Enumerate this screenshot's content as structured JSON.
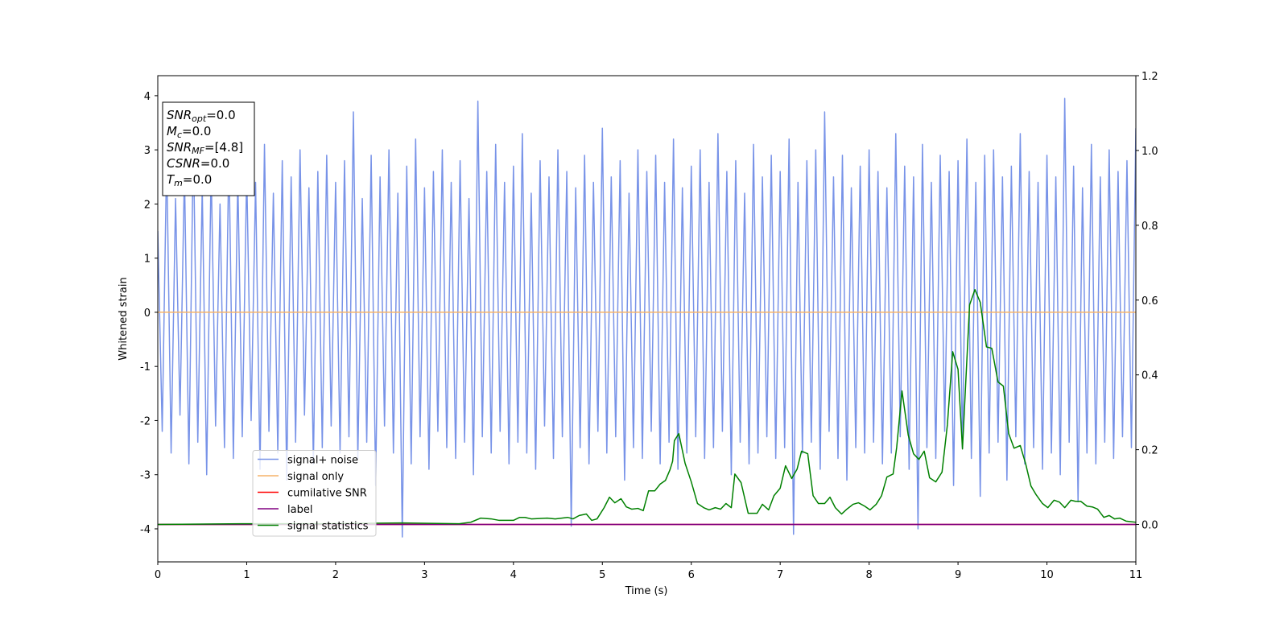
{
  "chart_data": {
    "type": "line",
    "xlabel": "Time (s)",
    "ylabel": "Whitened strain",
    "xlim": [
      0,
      11
    ],
    "xticks": [
      0,
      1,
      2,
      3,
      4,
      5,
      6,
      7,
      8,
      9,
      10,
      11
    ],
    "ylim": [
      -4.61,
      4.37
    ],
    "yticks": [
      -4,
      -3,
      -2,
      -1,
      0,
      1,
      2,
      3,
      4
    ],
    "y2lim": [
      -0.1,
      1.2
    ],
    "y2ticks": [
      {
        "value": 0,
        "label": "0.0"
      },
      {
        "value": 0.2,
        "label": "0.2"
      },
      {
        "value": 0.4,
        "label": "0.4"
      },
      {
        "value": 0.6,
        "label": "0.6"
      },
      {
        "value": 0.8,
        "label": "0.8"
      },
      {
        "value": 1,
        "label": "1.0"
      },
      {
        "value": 1.2,
        "label": "1.2"
      }
    ],
    "legend": "lower left",
    "annotations": [
      {
        "base": "SNR",
        "sub": "opt",
        "rest": "=0.0"
      },
      {
        "base": "M",
        "sub": "c",
        "rest": "=0.0"
      },
      {
        "base": "SNR",
        "sub": "MF",
        "rest": "=[4.8]"
      },
      {
        "base": "CSNR",
        "rest": "=0.0"
      },
      {
        "base": "T",
        "sub": "m",
        "rest": "=0.0"
      }
    ],
    "series": [
      {
        "name": "signal+ noise",
        "color": "#7893e8",
        "axis": "y",
        "x": [
          0,
          0.05,
          0.1,
          0.15,
          0.2,
          0.25,
          0.3,
          0.35,
          0.4,
          0.45,
          0.5,
          0.55,
          0.6,
          0.65,
          0.7,
          0.75,
          0.8,
          0.85,
          0.9,
          0.95,
          1,
          1.05,
          1.1,
          1.15,
          1.2,
          1.25,
          1.3,
          1.35,
          1.4,
          1.45,
          1.5,
          1.55,
          1.6,
          1.65,
          1.7,
          1.75,
          1.8,
          1.85,
          1.9,
          1.95,
          2,
          2.05,
          2.1,
          2.15,
          2.2,
          2.25,
          2.3,
          2.35,
          2.4,
          2.45,
          2.5,
          2.55,
          2.6,
          2.65,
          2.7,
          2.75,
          2.8,
          2.85,
          2.9,
          2.95,
          3,
          3.05,
          3.1,
          3.15,
          3.2,
          3.25,
          3.3,
          3.35,
          3.4,
          3.45,
          3.5,
          3.55,
          3.6,
          3.65,
          3.7,
          3.75,
          3.8,
          3.85,
          3.9,
          3.95,
          4,
          4.05,
          4.1,
          4.15,
          4.2,
          4.25,
          4.3,
          4.35,
          4.4,
          4.45,
          4.5,
          4.55,
          4.6,
          4.65,
          4.7,
          4.75,
          4.8,
          4.85,
          4.9,
          4.95,
          5,
          5.05,
          5.1,
          5.15,
          5.2,
          5.25,
          5.3,
          5.35,
          5.4,
          5.45,
          5.5,
          5.55,
          5.6,
          5.65,
          5.7,
          5.75,
          5.8,
          5.85,
          5.9,
          5.95,
          6,
          6.05,
          6.1,
          6.15,
          6.2,
          6.25,
          6.3,
          6.35,
          6.4,
          6.45,
          6.5,
          6.55,
          6.6,
          6.65,
          6.7,
          6.75,
          6.8,
          6.85,
          6.9,
          6.95,
          7,
          7.05,
          7.1,
          7.15,
          7.2,
          7.25,
          7.3,
          7.35,
          7.4,
          7.45,
          7.5,
          7.55,
          7.6,
          7.65,
          7.7,
          7.75,
          7.8,
          7.85,
          7.9,
          7.95,
          8,
          8.05,
          8.1,
          8.15,
          8.2,
          8.25,
          8.3,
          8.35,
          8.4,
          8.45,
          8.5,
          8.55,
          8.6,
          8.65,
          8.7,
          8.75,
          8.8,
          8.85,
          8.9,
          8.95,
          9,
          9.05,
          9.1,
          9.15,
          9.2,
          9.25,
          9.3,
          9.35,
          9.4,
          9.45,
          9.5,
          9.55,
          9.6,
          9.65,
          9.7,
          9.75,
          9.8,
          9.85,
          9.9,
          9.95,
          10,
          10.05,
          10.1,
          10.15,
          10.2,
          10.25,
          10.3,
          10.35,
          10.4,
          10.45,
          10.5,
          10.55,
          10.6,
          10.65,
          10.7,
          10.75,
          10.8,
          10.85,
          10.9,
          10.95,
          11
        ],
        "values": [
          1.5,
          -2.2,
          2.9,
          -2.6,
          2.1,
          -1.9,
          2.6,
          -2.8,
          3.2,
          -2.4,
          2.3,
          -3.0,
          2.7,
          -2.1,
          2.0,
          -2.5,
          3.0,
          -2.7,
          2.5,
          -2.3,
          2.6,
          -2.0,
          2.4,
          -2.9,
          3.1,
          -2.2,
          2.2,
          -2.6,
          2.8,
          -3.1,
          2.5,
          -2.4,
          3.0,
          -1.9,
          2.3,
          -2.8,
          2.6,
          -2.5,
          2.9,
          -2.1,
          2.4,
          -2.6,
          2.8,
          -2.3,
          3.7,
          -2.7,
          2.1,
          -2.4,
          2.9,
          -3.2,
          2.5,
          -2.1,
          3.0,
          -2.6,
          2.2,
          -4.15,
          2.7,
          -2.8,
          3.2,
          -2.3,
          2.3,
          -2.9,
          2.6,
          -2.2,
          3.0,
          -2.5,
          2.4,
          -2.7,
          2.8,
          -2.4,
          2.1,
          -3.0,
          3.9,
          -2.3,
          2.6,
          -2.6,
          3.1,
          -2.2,
          2.4,
          -2.8,
          2.7,
          -2.4,
          3.3,
          -2.6,
          2.2,
          -2.9,
          2.8,
          -2.1,
          2.5,
          -2.7,
          3.0,
          -2.3,
          2.6,
          -3.95,
          2.3,
          -2.5,
          2.9,
          -2.8,
          2.4,
          -2.2,
          3.4,
          -2.6,
          2.5,
          -2.3,
          2.8,
          -3.1,
          2.2,
          -2.5,
          3.0,
          -2.7,
          2.6,
          -2.2,
          2.9,
          -2.8,
          2.4,
          -2.4,
          3.2,
          -2.9,
          2.3,
          -2.6,
          2.7,
          -2.3,
          3.0,
          -2.7,
          2.4,
          -2.5,
          3.3,
          -2.2,
          2.6,
          -3.0,
          2.8,
          -2.4,
          2.2,
          -2.8,
          3.1,
          -2.6,
          2.5,
          -2.3,
          2.9,
          -2.7,
          2.6,
          -2.5,
          3.2,
          -4.1,
          2.4,
          -2.6,
          2.8,
          -2.4,
          3.0,
          -2.9,
          3.7,
          -2.2,
          2.5,
          -2.7,
          2.9,
          -3.1,
          2.3,
          -2.5,
          2.7,
          -2.6,
          3.0,
          -2.4,
          2.6,
          -2.8,
          2.3,
          -2.6,
          3.3,
          -2.3,
          2.7,
          -2.9,
          2.5,
          -4.0,
          3.1,
          -2.5,
          2.4,
          -2.7,
          2.9,
          -2.2,
          2.6,
          -3.2,
          2.8,
          -2.5,
          3.2,
          -2.7,
          2.4,
          -3.4,
          2.9,
          -2.6,
          3.0,
          -2.4,
          2.5,
          -3.1,
          2.7,
          -2.3,
          3.3,
          -2.8,
          2.6,
          -2.5,
          2.4,
          -2.9,
          2.9,
          -2.6,
          2.5,
          -3.0,
          3.95,
          -2.4,
          2.7,
          -3.5,
          2.3,
          -2.6,
          3.1,
          -2.8,
          2.5,
          -2.4,
          3.0,
          -2.7,
          2.6,
          -2.3,
          2.8,
          -2.5,
          3.4
        ]
      },
      {
        "name": "signal only",
        "color": "#f6b46a",
        "axis": "y",
        "x": [
          0,
          11
        ],
        "values": [
          0,
          0
        ]
      },
      {
        "name": "cumilative SNR",
        "color": "#ff0000",
        "axis": "y2",
        "x": [
          0,
          11
        ],
        "values": [
          0,
          0
        ]
      },
      {
        "name": "label",
        "color": "#800080",
        "axis": "y2",
        "x": [
          0,
          11
        ],
        "values": [
          0,
          0
        ]
      },
      {
        "name": "signal statistics",
        "color": "#008000",
        "axis": "y2",
        "x": [
          0,
          0.94,
          1.85,
          2.75,
          3.39,
          3.52,
          3.63,
          3.75,
          3.84,
          4.0,
          4.07,
          4.13,
          4.2,
          4.38,
          4.47,
          4.61,
          4.67,
          4.74,
          4.82,
          4.88,
          4.94,
          5.02,
          5.08,
          5.14,
          5.21,
          5.27,
          5.33,
          5.4,
          5.46,
          5.52,
          5.59,
          5.65,
          5.71,
          5.76,
          5.79,
          5.81,
          5.86,
          5.93,
          6.0,
          6.07,
          6.14,
          6.2,
          6.27,
          6.33,
          6.39,
          6.45,
          6.49,
          6.56,
          6.64,
          6.74,
          6.8,
          6.87,
          6.93,
          7.0,
          7.06,
          7.13,
          7.19,
          7.24,
          7.31,
          7.37,
          7.43,
          7.5,
          7.56,
          7.62,
          7.69,
          7.75,
          7.82,
          7.88,
          7.95,
          8.01,
          8.08,
          8.14,
          8.2,
          8.27,
          8.31,
          8.37,
          8.44,
          8.5,
          8.56,
          8.62,
          8.68,
          8.75,
          8.82,
          8.88,
          8.94,
          9.0,
          9.05,
          9.13,
          9.19,
          9.25,
          9.32,
          9.38,
          9.45,
          9.51,
          9.57,
          9.63,
          9.7,
          9.76,
          9.82,
          9.88,
          9.95,
          10.01,
          10.08,
          10.14,
          10.2,
          10.27,
          10.32,
          10.38,
          10.45,
          10.51,
          10.57,
          10.64,
          10.7,
          10.76,
          10.82,
          10.89,
          11
        ],
        "values": [
          0,
          0.002,
          0.002,
          0.004,
          0.002,
          0.006,
          0.017,
          0.015,
          0.011,
          0.011,
          0.019,
          0.019,
          0.015,
          0.017,
          0.015,
          0.019,
          0.015,
          0.024,
          0.028,
          0.011,
          0.015,
          0.045,
          0.073,
          0.058,
          0.069,
          0.047,
          0.041,
          0.043,
          0.037,
          0.09,
          0.09,
          0.108,
          0.118,
          0.146,
          0.169,
          0.224,
          0.243,
          0.164,
          0.114,
          0.056,
          0.045,
          0.039,
          0.045,
          0.041,
          0.056,
          0.045,
          0.135,
          0.112,
          0.03,
          0.03,
          0.054,
          0.039,
          0.077,
          0.097,
          0.157,
          0.123,
          0.148,
          0.196,
          0.189,
          0.077,
          0.056,
          0.056,
          0.073,
          0.045,
          0.028,
          0.041,
          0.054,
          0.058,
          0.049,
          0.039,
          0.054,
          0.077,
          0.127,
          0.135,
          0.206,
          0.357,
          0.239,
          0.189,
          0.174,
          0.196,
          0.125,
          0.114,
          0.14,
          0.266,
          0.462,
          0.415,
          0.202,
          0.587,
          0.628,
          0.594,
          0.475,
          0.471,
          0.381,
          0.37,
          0.243,
          0.204,
          0.211,
          0.163,
          0.103,
          0.079,
          0.056,
          0.045,
          0.065,
          0.06,
          0.045,
          0.065,
          0.062,
          0.062,
          0.049,
          0.047,
          0.041,
          0.019,
          0.024,
          0.015,
          0.017,
          0.009,
          0.006
        ]
      }
    ]
  }
}
